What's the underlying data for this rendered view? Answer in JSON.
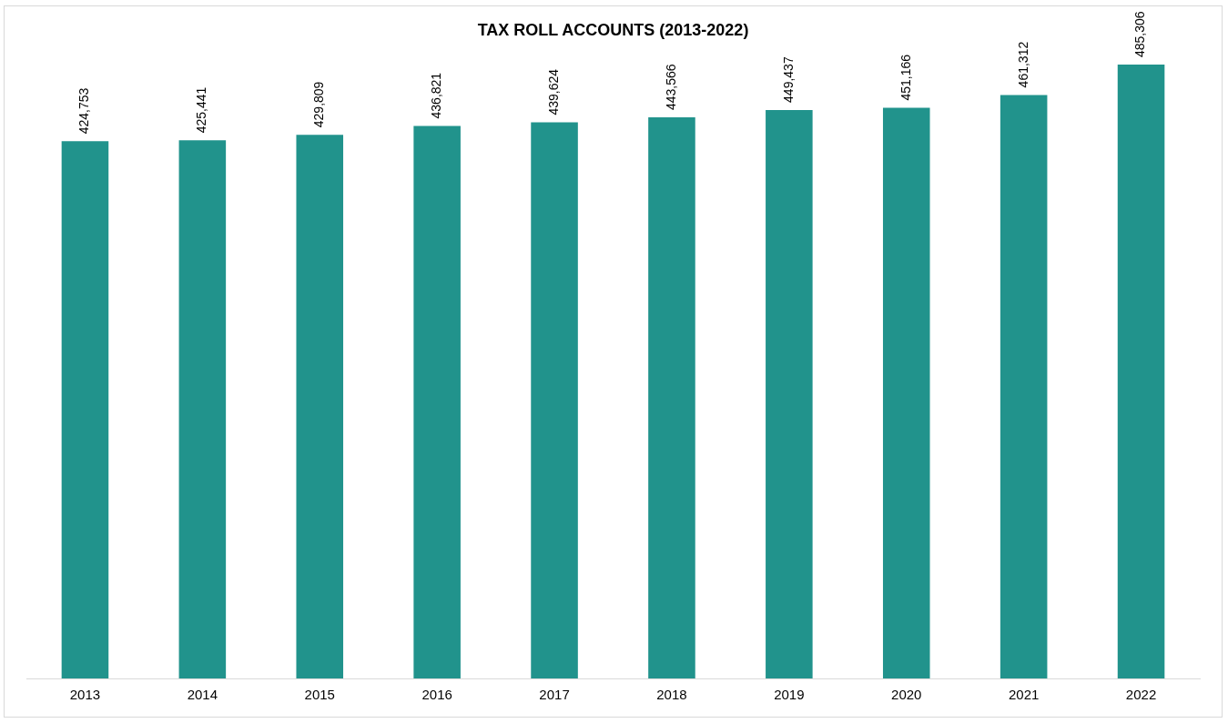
{
  "chart_data": {
    "type": "bar",
    "title": "TAX ROLL ACCOUNTS (2013-2022)",
    "categories": [
      "2013",
      "2014",
      "2015",
      "2016",
      "2017",
      "2018",
      "2019",
      "2020",
      "2021",
      "2022"
    ],
    "values": [
      424753,
      425441,
      429809,
      436821,
      439624,
      443566,
      449437,
      451166,
      461312,
      485306
    ],
    "color": "#21938c",
    "value_labels": [
      "424,753",
      "425,441",
      "429,809",
      "436,821",
      "439,624",
      "443,566",
      "449,437",
      "451,166",
      "461,312",
      "485,306"
    ],
    "grid": false,
    "legend": false,
    "tick_labels": "x"
  }
}
